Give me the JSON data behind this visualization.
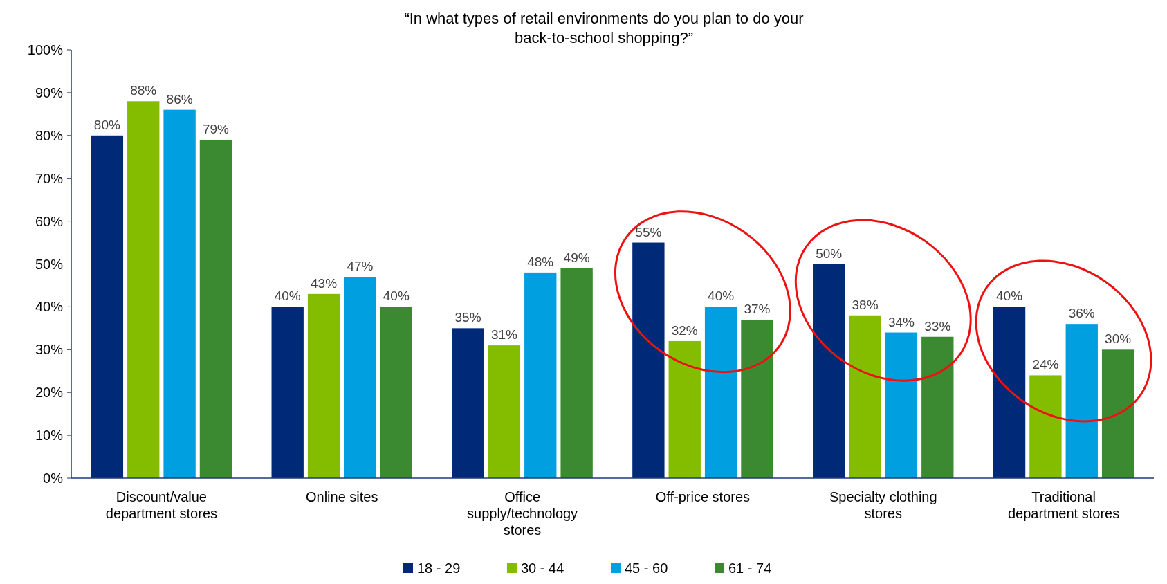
{
  "chart_data": {
    "type": "bar",
    "title": "“In what types of retail environments do you plan to do your back-to-school shopping?”",
    "categories": [
      "Discount/value department stores",
      "Online sites",
      "Office supply/technology stores",
      "Off-price stores",
      "Specialty clothing stores",
      "Traditional department stores"
    ],
    "series": [
      {
        "name": "18 - 29",
        "color": "#002a77",
        "values": [
          80,
          40,
          35,
          55,
          50,
          40
        ],
        "value_labels": [
          "80%",
          "40%",
          "35%",
          "55%",
          "50%",
          "40%"
        ]
      },
      {
        "name": "30 - 44",
        "color": "#84bd00",
        "values": [
          88,
          43,
          31,
          32,
          38,
          24
        ],
        "value_labels": [
          "88%",
          "43%",
          "31%",
          "32%",
          "38%",
          "24%"
        ]
      },
      {
        "name": "45 - 60",
        "color": "#009fdf",
        "values": [
          86,
          47,
          48,
          40,
          34,
          36
        ],
        "value_labels": [
          "86%",
          "47%",
          "48%",
          "40%",
          "34%",
          "36%"
        ]
      },
      {
        "name": "61 - 74",
        "color": "#3b8a32",
        "values": [
          79,
          40,
          49,
          37,
          33,
          30
        ],
        "value_labels": [
          "79%",
          "40%",
          "49%",
          "37%",
          "33%",
          "30%"
        ]
      }
    ],
    "ylim": [
      0,
      100
    ],
    "yticks": [
      {
        "value": 0,
        "label": "0%"
      },
      {
        "value": 10,
        "label": "10%"
      },
      {
        "value": 20,
        "label": "20%"
      },
      {
        "value": 30,
        "label": "30%"
      },
      {
        "value": 40,
        "label": "40%"
      },
      {
        "value": 50,
        "label": "50%"
      },
      {
        "value": 60,
        "label": "60%"
      },
      {
        "value": 70,
        "label": "70%"
      },
      {
        "value": 80,
        "label": "80%"
      },
      {
        "value": 90,
        "label": "90%"
      },
      {
        "value": 100,
        "label": "100%"
      }
    ],
    "legend": "bottom",
    "grid": false
  }
}
